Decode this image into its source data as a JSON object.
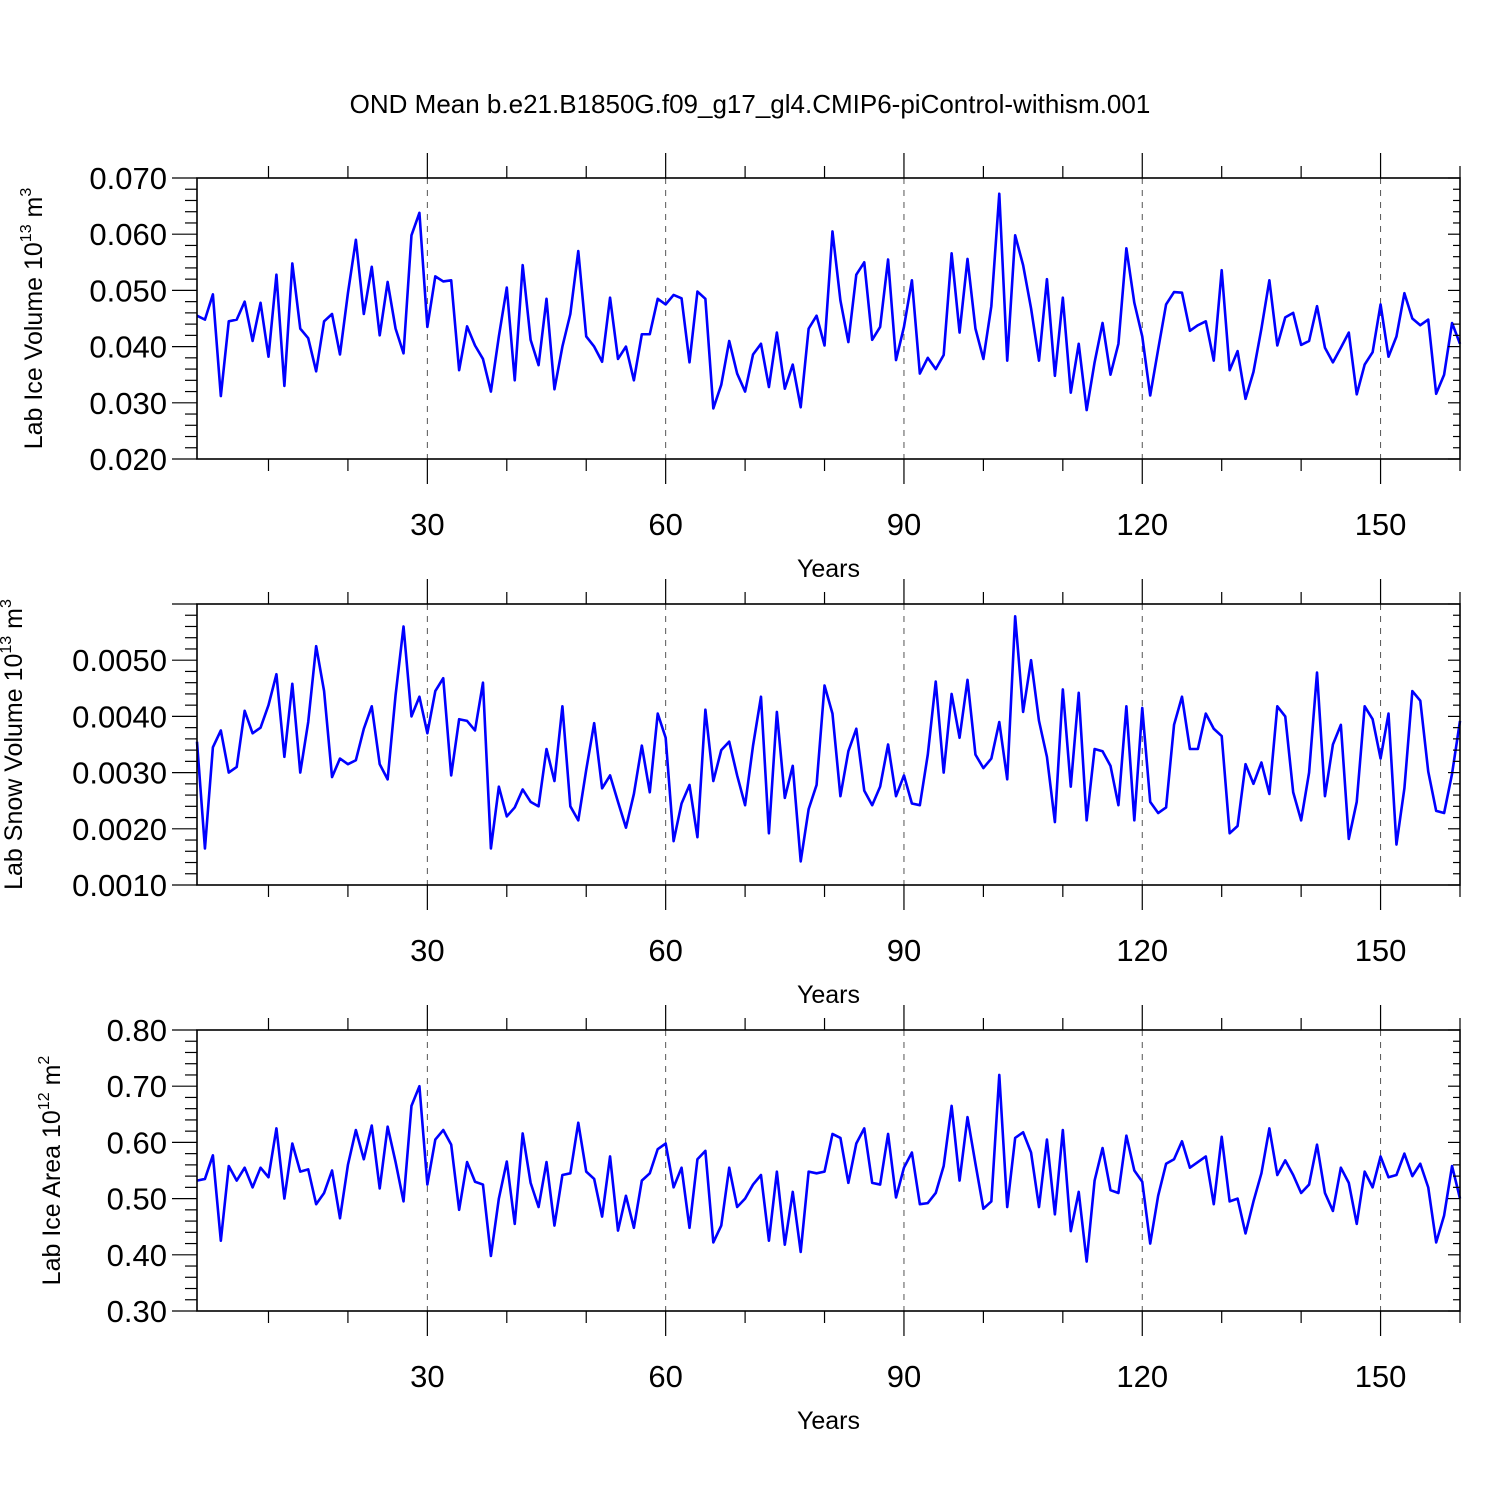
{
  "title": "OND Mean b.e21.B1850G.f09_g17_gl4.CMIP6-piControl-withism.001",
  "chart_data": [
    {
      "type": "line",
      "id": "ice-volume",
      "ylabel": {
        "pre": "Lab Ice Volume 10",
        "exp": "13",
        "mid": " m",
        "exp2": "3"
      },
      "xlabel": "Years",
      "xlim": [
        1,
        160
      ],
      "ylim": [
        0.02,
        0.07
      ],
      "yticks": [
        0.02,
        0.03,
        0.04,
        0.05,
        0.06,
        0.07
      ],
      "ytick_labels": [
        "0.020",
        "0.030",
        "0.040",
        "0.050",
        "0.060",
        "0.070"
      ],
      "xticks": [
        30,
        60,
        90,
        120,
        150
      ],
      "xtick_labels": [
        "30",
        "60",
        "90",
        "120",
        "150"
      ],
      "grid": "vertical-dashed",
      "color": "#0000ff",
      "x_start": 1,
      "values": [
        0.0455,
        0.0448,
        0.0493,
        0.0312,
        0.0445,
        0.0448,
        0.048,
        0.041,
        0.0478,
        0.0382,
        0.0528,
        0.033,
        0.0548,
        0.0432,
        0.0415,
        0.0356,
        0.0445,
        0.0458,
        0.0386,
        0.0495,
        0.059,
        0.0458,
        0.0542,
        0.042,
        0.0515,
        0.0432,
        0.0388,
        0.0598,
        0.0638,
        0.0435,
        0.0525,
        0.0516,
        0.0518,
        0.0358,
        0.0436,
        0.0402,
        0.0378,
        0.032,
        0.0418,
        0.0505,
        0.034,
        0.0545,
        0.0412,
        0.0367,
        0.0485,
        0.0324,
        0.04,
        0.0458,
        0.057,
        0.0418,
        0.04,
        0.0373,
        0.0487,
        0.0378,
        0.04,
        0.034,
        0.0422,
        0.0422,
        0.0485,
        0.0475,
        0.0492,
        0.0486,
        0.0372,
        0.0498,
        0.0485,
        0.029,
        0.0332,
        0.041,
        0.0352,
        0.032,
        0.0386,
        0.0405,
        0.0328,
        0.0425,
        0.0325,
        0.0368,
        0.0292,
        0.0432,
        0.0455,
        0.0402,
        0.0605,
        0.0482,
        0.0408,
        0.0528,
        0.055,
        0.0412,
        0.0435,
        0.0555,
        0.0376,
        0.0435,
        0.0518,
        0.0352,
        0.038,
        0.036,
        0.0385,
        0.0566,
        0.0425,
        0.0556,
        0.0432,
        0.0378,
        0.0472,
        0.0672,
        0.0375,
        0.0598,
        0.0545,
        0.0468,
        0.0375,
        0.052,
        0.0348,
        0.0487,
        0.0318,
        0.0405,
        0.0287,
        0.0372,
        0.0442,
        0.035,
        0.0405,
        0.0575,
        0.0478,
        0.0418,
        0.0313,
        0.0395,
        0.0475,
        0.0497,
        0.0496,
        0.0428,
        0.0438,
        0.0445,
        0.0375,
        0.0536,
        0.0358,
        0.0392,
        0.0307,
        0.0355,
        0.0432,
        0.0518,
        0.0402,
        0.0452,
        0.046,
        0.0403,
        0.041,
        0.0472,
        0.0398,
        0.0372,
        0.0398,
        0.0425,
        0.0315,
        0.0368,
        0.039,
        0.0475,
        0.0382,
        0.0418,
        0.0495,
        0.045,
        0.0438,
        0.0448,
        0.0316,
        0.035,
        0.0442,
        0.0405
      ]
    },
    {
      "type": "line",
      "id": "snow-volume",
      "ylabel": {
        "pre": "Lab Snow Volume 10",
        "exp": "13",
        "mid": " m",
        "exp2": "3"
      },
      "xlabel": "Years",
      "xlim": [
        1,
        160
      ],
      "ylim": [
        0.001,
        0.006
      ],
      "yticks": [
        0.001,
        0.002,
        0.003,
        0.004,
        0.005
      ],
      "ytick_labels": [
        "0.0010",
        "0.0020",
        "0.0030",
        "0.0040",
        "0.0050"
      ],
      "xticks": [
        30,
        60,
        90,
        120,
        150
      ],
      "xtick_labels": [
        "30",
        "60",
        "90",
        "120",
        "150"
      ],
      "grid": "vertical-dashed",
      "color": "#0000ff",
      "x_start": 1,
      "values": [
        0.00355,
        0.00165,
        0.00345,
        0.00375,
        0.003,
        0.0031,
        0.0041,
        0.0037,
        0.0038,
        0.0042,
        0.00475,
        0.00328,
        0.00458,
        0.003,
        0.0039,
        0.00525,
        0.00445,
        0.00292,
        0.00325,
        0.00315,
        0.00322,
        0.00378,
        0.00418,
        0.00315,
        0.00288,
        0.00438,
        0.0056,
        0.004,
        0.00435,
        0.0037,
        0.00445,
        0.00468,
        0.00295,
        0.00395,
        0.00392,
        0.00375,
        0.0046,
        0.00165,
        0.00275,
        0.00222,
        0.00238,
        0.0027,
        0.00248,
        0.0024,
        0.00342,
        0.00285,
        0.00418,
        0.0024,
        0.00215,
        0.00305,
        0.00388,
        0.00272,
        0.00295,
        0.00248,
        0.00202,
        0.00262,
        0.00348,
        0.00265,
        0.00405,
        0.00362,
        0.00178,
        0.00245,
        0.00278,
        0.00185,
        0.00412,
        0.00285,
        0.0034,
        0.00355,
        0.00295,
        0.00242,
        0.00348,
        0.00435,
        0.00192,
        0.00408,
        0.00255,
        0.00312,
        0.00142,
        0.00235,
        0.00278,
        0.00455,
        0.00405,
        0.00258,
        0.00338,
        0.00378,
        0.00268,
        0.00242,
        0.00275,
        0.0035,
        0.00258,
        0.00295,
        0.00245,
        0.00242,
        0.00332,
        0.00462,
        0.003,
        0.0044,
        0.00362,
        0.00465,
        0.00332,
        0.00308,
        0.00325,
        0.0039,
        0.00288,
        0.00578,
        0.00408,
        0.005,
        0.00392,
        0.00328,
        0.00212,
        0.00448,
        0.00275,
        0.00442,
        0.00215,
        0.00342,
        0.00338,
        0.00312,
        0.00242,
        0.00418,
        0.00215,
        0.00415,
        0.00248,
        0.00228,
        0.00238,
        0.00385,
        0.00435,
        0.00342,
        0.00342,
        0.00405,
        0.00378,
        0.00365,
        0.00192,
        0.00205,
        0.00315,
        0.0028,
        0.00318,
        0.00262,
        0.00418,
        0.004,
        0.00265,
        0.00215,
        0.003,
        0.00478,
        0.00258,
        0.0035,
        0.00385,
        0.00182,
        0.00248,
        0.00418,
        0.00395,
        0.00325,
        0.00405,
        0.00172,
        0.00272,
        0.00445,
        0.00428,
        0.00302,
        0.00232,
        0.00228,
        0.00298,
        0.00392
      ]
    },
    {
      "type": "line",
      "id": "ice-area",
      "ylabel": {
        "pre": "Lab Ice Area 10",
        "exp": "12",
        "mid": " m",
        "exp2": "2"
      },
      "xlabel": "Years",
      "xlim": [
        1,
        160
      ],
      "ylim": [
        0.3,
        0.8
      ],
      "yticks": [
        0.3,
        0.4,
        0.5,
        0.6,
        0.7,
        0.8
      ],
      "ytick_labels": [
        "0.30",
        "0.40",
        "0.50",
        "0.60",
        "0.70",
        "0.80"
      ],
      "xticks": [
        30,
        60,
        90,
        120,
        150
      ],
      "xtick_labels": [
        "30",
        "60",
        "90",
        "120",
        "150"
      ],
      "grid": "vertical-dashed",
      "color": "#0000ff",
      "x_start": 1,
      "values": [
        0.532,
        0.535,
        0.577,
        0.425,
        0.558,
        0.532,
        0.555,
        0.52,
        0.555,
        0.538,
        0.625,
        0.5,
        0.598,
        0.548,
        0.552,
        0.49,
        0.51,
        0.55,
        0.465,
        0.56,
        0.622,
        0.57,
        0.63,
        0.518,
        0.628,
        0.565,
        0.495,
        0.665,
        0.7,
        0.525,
        0.605,
        0.622,
        0.596,
        0.48,
        0.565,
        0.53,
        0.525,
        0.398,
        0.5,
        0.566,
        0.455,
        0.616,
        0.528,
        0.485,
        0.565,
        0.452,
        0.542,
        0.545,
        0.635,
        0.548,
        0.535,
        0.468,
        0.575,
        0.443,
        0.505,
        0.448,
        0.532,
        0.545,
        0.588,
        0.598,
        0.52,
        0.555,
        0.448,
        0.57,
        0.585,
        0.422,
        0.452,
        0.555,
        0.485,
        0.5,
        0.525,
        0.542,
        0.425,
        0.548,
        0.418,
        0.512,
        0.405,
        0.548,
        0.545,
        0.548,
        0.615,
        0.608,
        0.528,
        0.598,
        0.625,
        0.528,
        0.525,
        0.615,
        0.502,
        0.555,
        0.582,
        0.49,
        0.492,
        0.51,
        0.558,
        0.665,
        0.532,
        0.645,
        0.562,
        0.482,
        0.495,
        0.72,
        0.485,
        0.608,
        0.618,
        0.582,
        0.485,
        0.605,
        0.472,
        0.622,
        0.442,
        0.512,
        0.388,
        0.532,
        0.59,
        0.515,
        0.51,
        0.612,
        0.55,
        0.53,
        0.42,
        0.505,
        0.562,
        0.57,
        0.602,
        0.555,
        0.565,
        0.575,
        0.49,
        0.61,
        0.495,
        0.5,
        0.438,
        0.495,
        0.545,
        0.625,
        0.542,
        0.568,
        0.542,
        0.51,
        0.525,
        0.596,
        0.51,
        0.478,
        0.555,
        0.528,
        0.455,
        0.548,
        0.52,
        0.575,
        0.538,
        0.542,
        0.58,
        0.54,
        0.562,
        0.52,
        0.422,
        0.47,
        0.558,
        0.5
      ]
    }
  ]
}
